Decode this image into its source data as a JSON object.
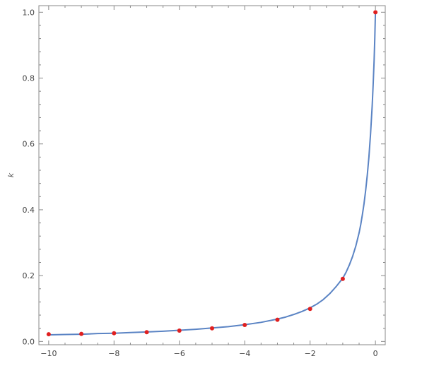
{
  "chart_data": {
    "type": "line",
    "title": "",
    "xlabel": "",
    "ylabel": "k",
    "xlim": [
      -10.3,
      0.3
    ],
    "ylim": [
      -0.01,
      1.02
    ],
    "x_ticks": [
      {
        "value": -10,
        "label": "−10"
      },
      {
        "value": -8,
        "label": "−8"
      },
      {
        "value": -6,
        "label": "−6"
      },
      {
        "value": -4,
        "label": "−4"
      },
      {
        "value": -2,
        "label": "−2"
      },
      {
        "value": 0,
        "label": "0"
      }
    ],
    "y_ticks": [
      {
        "value": 0.0,
        "label": "0.0"
      },
      {
        "value": 0.2,
        "label": "0.2"
      },
      {
        "value": 0.4,
        "label": "0.4"
      },
      {
        "value": 0.6,
        "label": "0.6"
      },
      {
        "value": 0.8,
        "label": "0.8"
      },
      {
        "value": 1.0,
        "label": "1.0"
      }
    ],
    "grid": false,
    "frame": true,
    "series": [
      {
        "kind": "line",
        "color": "#5b84c4",
        "x": [
          -10,
          -9.5,
          -9,
          -8.5,
          -8,
          -7.5,
          -7,
          -6.5,
          -6,
          -5.5,
          -5,
          -4.5,
          -4,
          -3.5,
          -3,
          -2.75,
          -2.5,
          -2.25,
          -2,
          -1.8,
          -1.6,
          -1.4,
          -1.2,
          -1,
          -0.9,
          -0.8,
          -0.7,
          -0.6,
          -0.5,
          -0.45,
          -0.4,
          -0.35,
          -0.3,
          -0.25,
          -0.2,
          -0.15,
          -0.1,
          -0.07,
          -0.04,
          -0.02,
          0
        ],
        "y": [
          0.02,
          0.021,
          0.022,
          0.024,
          0.025,
          0.027,
          0.029,
          0.031,
          0.034,
          0.037,
          0.041,
          0.045,
          0.051,
          0.058,
          0.068,
          0.074,
          0.082,
          0.091,
          0.102,
          0.113,
          0.127,
          0.145,
          0.167,
          0.192,
          0.21,
          0.232,
          0.258,
          0.29,
          0.33,
          0.355,
          0.385,
          0.418,
          0.458,
          0.505,
          0.56,
          0.63,
          0.715,
          0.78,
          0.855,
          0.92,
          1.0
        ]
      },
      {
        "kind": "points",
        "color": "#e02020",
        "x": [
          -10,
          -9,
          -8,
          -7,
          -6,
          -5,
          -4,
          -3,
          -2,
          -1,
          0
        ],
        "y": [
          0.022,
          0.023,
          0.025,
          0.028,
          0.033,
          0.04,
          0.05,
          0.066,
          0.099,
          0.19,
          1.0
        ]
      }
    ]
  }
}
